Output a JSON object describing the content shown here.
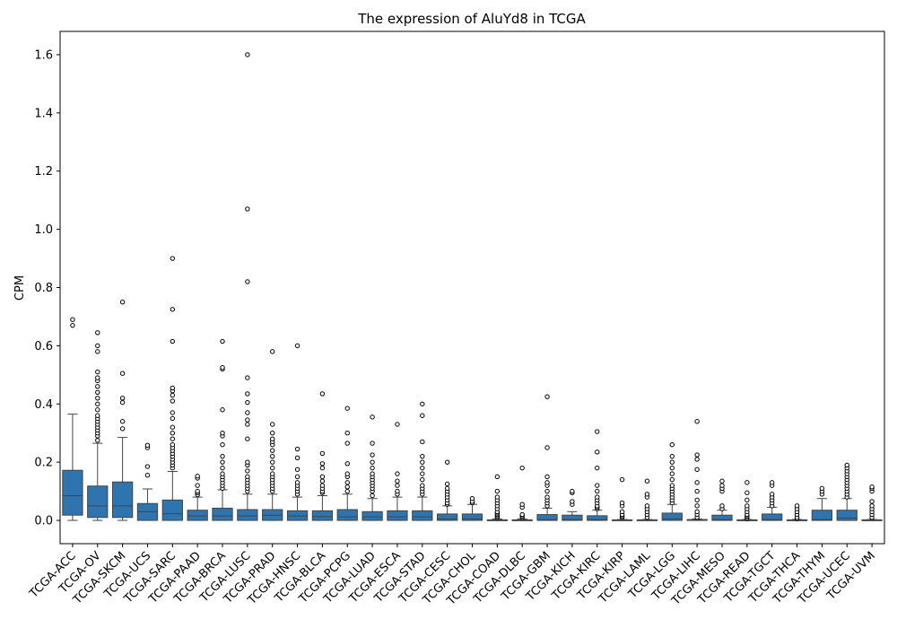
{
  "chart_data": {
    "type": "box",
    "title": "The expression of AluYd8 in TCGA",
    "xlabel": "",
    "ylabel": "CPM",
    "ylim": [
      -0.08,
      1.68
    ],
    "yticks": [
      0.0,
      0.2,
      0.4,
      0.6,
      0.8,
      1.0,
      1.2,
      1.4,
      1.6
    ],
    "ytick_labels": [
      "0.0",
      "0.2",
      "0.4",
      "0.6",
      "0.8",
      "1.0",
      "1.2",
      "1.4",
      "1.6"
    ],
    "grid": false,
    "box_color": "#2e75b0",
    "categories": [
      "TCGA-ACC",
      "TCGA-OV",
      "TCGA-SKCM",
      "TCGA-UCS",
      "TCGA-SARC",
      "TCGA-PAAD",
      "TCGA-BRCA",
      "TCGA-LUSC",
      "TCGA-PRAD",
      "TCGA-HNSC",
      "TCGA-BLCA",
      "TCGA-PCPG",
      "TCGA-LUAD",
      "TCGA-ESCA",
      "TCGA-STAD",
      "TCGA-CESC",
      "TCGA-CHOL",
      "TCGA-COAD",
      "TCGA-DLBC",
      "TCGA-GBM",
      "TCGA-KICH",
      "TCGA-KIRC",
      "TCGA-KIRP",
      "TCGA-LAML",
      "TCGA-LGG",
      "TCGA-LIHC",
      "TCGA-MESO",
      "TCGA-READ",
      "TCGA-TGCT",
      "TCGA-THCA",
      "TCGA-THYM",
      "TCGA-UCEC",
      "TCGA-UVM"
    ],
    "boxes": [
      {
        "q1": 0.018,
        "median": 0.085,
        "q3": 0.172,
        "whislo": 0.0,
        "whishi": 0.365,
        "fliers": [
          0.67,
          0.69
        ]
      },
      {
        "q1": 0.01,
        "median": 0.05,
        "q3": 0.118,
        "whislo": 0.0,
        "whishi": 0.265,
        "fliers": [
          0.275,
          0.29,
          0.3,
          0.31,
          0.32,
          0.33,
          0.34,
          0.35,
          0.36,
          0.38,
          0.4,
          0.42,
          0.44,
          0.46,
          0.48,
          0.49,
          0.51,
          0.58,
          0.6,
          0.645
        ]
      },
      {
        "q1": 0.01,
        "median": 0.05,
        "q3": 0.132,
        "whislo": 0.0,
        "whishi": 0.285,
        "fliers": [
          0.315,
          0.34,
          0.405,
          0.42,
          0.505,
          0.75
        ]
      },
      {
        "q1": 0.0,
        "median": 0.03,
        "q3": 0.058,
        "whislo": 0.0,
        "whishi": 0.108,
        "fliers": [
          0.155,
          0.185,
          0.25,
          0.258
        ]
      },
      {
        "q1": 0.0,
        "median": 0.023,
        "q3": 0.07,
        "whislo": 0.0,
        "whishi": 0.168,
        "fliers": [
          0.18,
          0.19,
          0.2,
          0.21,
          0.22,
          0.23,
          0.24,
          0.25,
          0.26,
          0.28,
          0.3,
          0.32,
          0.35,
          0.37,
          0.41,
          0.43,
          0.445,
          0.455,
          0.615,
          0.725,
          0.9
        ]
      },
      {
        "q1": 0.0,
        "median": 0.015,
        "q3": 0.035,
        "whislo": 0.0,
        "whishi": 0.08,
        "fliers": [
          0.088,
          0.095,
          0.1,
          0.12,
          0.145,
          0.152
        ]
      },
      {
        "q1": 0.0,
        "median": 0.015,
        "q3": 0.042,
        "whislo": 0.0,
        "whishi": 0.105,
        "fliers": [
          0.11,
          0.12,
          0.13,
          0.14,
          0.15,
          0.16,
          0.18,
          0.2,
          0.22,
          0.26,
          0.29,
          0.3,
          0.38,
          0.52,
          0.525,
          0.615
        ]
      },
      {
        "q1": 0.0,
        "median": 0.015,
        "q3": 0.037,
        "whislo": 0.0,
        "whishi": 0.09,
        "fliers": [
          0.1,
          0.11,
          0.12,
          0.13,
          0.14,
          0.15,
          0.17,
          0.19,
          0.2,
          0.28,
          0.33,
          0.345,
          0.37,
          0.405,
          0.435,
          0.49,
          0.82,
          1.07,
          1.6
        ]
      },
      {
        "q1": 0.0,
        "median": 0.018,
        "q3": 0.037,
        "whislo": 0.0,
        "whishi": 0.09,
        "fliers": [
          0.1,
          0.11,
          0.12,
          0.13,
          0.14,
          0.15,
          0.16,
          0.18,
          0.2,
          0.22,
          0.24,
          0.26,
          0.27,
          0.28,
          0.3,
          0.33,
          0.58
        ]
      },
      {
        "q1": 0.0,
        "median": 0.015,
        "q3": 0.033,
        "whislo": 0.0,
        "whishi": 0.08,
        "fliers": [
          0.09,
          0.1,
          0.11,
          0.12,
          0.13,
          0.15,
          0.175,
          0.215,
          0.245,
          0.6
        ]
      },
      {
        "q1": 0.0,
        "median": 0.013,
        "q3": 0.033,
        "whislo": 0.0,
        "whishi": 0.085,
        "fliers": [
          0.095,
          0.1,
          0.11,
          0.12,
          0.135,
          0.15,
          0.18,
          0.195,
          0.23,
          0.435
        ]
      },
      {
        "q1": 0.0,
        "median": 0.012,
        "q3": 0.037,
        "whislo": 0.0,
        "whishi": 0.09,
        "fliers": [
          0.1,
          0.115,
          0.13,
          0.15,
          0.16,
          0.195,
          0.265,
          0.3,
          0.385
        ]
      },
      {
        "q1": 0.0,
        "median": 0.012,
        "q3": 0.03,
        "whislo": 0.0,
        "whishi": 0.075,
        "fliers": [
          0.085,
          0.1,
          0.11,
          0.12,
          0.13,
          0.14,
          0.15,
          0.16,
          0.18,
          0.2,
          0.225,
          0.265,
          0.355
        ]
      },
      {
        "q1": 0.0,
        "median": 0.012,
        "q3": 0.033,
        "whislo": 0.0,
        "whishi": 0.08,
        "fliers": [
          0.09,
          0.1,
          0.12,
          0.135,
          0.16,
          0.33
        ]
      },
      {
        "q1": 0.0,
        "median": 0.012,
        "q3": 0.033,
        "whislo": 0.0,
        "whishi": 0.08,
        "fliers": [
          0.09,
          0.1,
          0.11,
          0.12,
          0.14,
          0.16,
          0.18,
          0.2,
          0.22,
          0.27,
          0.36,
          0.4
        ]
      },
      {
        "q1": 0.0,
        "median": 0.005,
        "q3": 0.022,
        "whislo": 0.0,
        "whishi": 0.05,
        "fliers": [
          0.055,
          0.06,
          0.07,
          0.08,
          0.09,
          0.1,
          0.11,
          0.125,
          0.2
        ]
      },
      {
        "q1": 0.0,
        "median": 0.005,
        "q3": 0.022,
        "whislo": 0.0,
        "whishi": 0.055,
        "fliers": [
          0.06,
          0.065,
          0.075
        ]
      },
      {
        "q1": 0.0,
        "median": 0.0,
        "q3": 0.002,
        "whislo": 0.0,
        "whishi": 0.005,
        "fliers": [
          0.01,
          0.015,
          0.02,
          0.025,
          0.03,
          0.04,
          0.05,
          0.06,
          0.07,
          0.08,
          0.1,
          0.15
        ]
      },
      {
        "q1": 0.0,
        "median": 0.0,
        "q3": 0.002,
        "whislo": 0.0,
        "whishi": 0.005,
        "fliers": [
          0.01,
          0.015,
          0.02,
          0.045,
          0.055,
          0.18
        ]
      },
      {
        "q1": 0.0,
        "median": 0.002,
        "q3": 0.02,
        "whislo": 0.0,
        "whishi": 0.042,
        "fliers": [
          0.05,
          0.06,
          0.07,
          0.08,
          0.1,
          0.12,
          0.13,
          0.15,
          0.25,
          0.425
        ]
      },
      {
        "q1": 0.0,
        "median": 0.003,
        "q3": 0.018,
        "whislo": 0.0,
        "whishi": 0.03,
        "fliers": [
          0.055,
          0.065,
          0.095,
          0.1
        ]
      },
      {
        "q1": 0.0,
        "median": 0.003,
        "q3": 0.016,
        "whislo": 0.0,
        "whishi": 0.035,
        "fliers": [
          0.04,
          0.045,
          0.05,
          0.06,
          0.07,
          0.08,
          0.1,
          0.12,
          0.18,
          0.235,
          0.305
        ]
      },
      {
        "q1": 0.0,
        "median": 0.0,
        "q3": 0.002,
        "whislo": 0.0,
        "whishi": 0.003,
        "fliers": [
          0.01,
          0.015,
          0.02,
          0.03,
          0.05,
          0.06,
          0.14
        ]
      },
      {
        "q1": 0.0,
        "median": 0.0,
        "q3": 0.002,
        "whislo": 0.0,
        "whishi": 0.003,
        "fliers": [
          0.01,
          0.02,
          0.03,
          0.04,
          0.05,
          0.08,
          0.09,
          0.135
        ]
      },
      {
        "q1": 0.0,
        "median": 0.005,
        "q3": 0.025,
        "whislo": 0.0,
        "whishi": 0.055,
        "fliers": [
          0.06,
          0.07,
          0.08,
          0.09,
          0.1,
          0.11,
          0.12,
          0.14,
          0.16,
          0.18,
          0.2,
          0.22,
          0.26
        ]
      },
      {
        "q1": 0.0,
        "median": 0.0,
        "q3": 0.003,
        "whislo": 0.0,
        "whishi": 0.005,
        "fliers": [
          0.01,
          0.02,
          0.03,
          0.05,
          0.07,
          0.1,
          0.13,
          0.175,
          0.21,
          0.225,
          0.34
        ]
      },
      {
        "q1": 0.0,
        "median": 0.003,
        "q3": 0.018,
        "whislo": 0.0,
        "whishi": 0.035,
        "fliers": [
          0.04,
          0.05,
          0.1,
          0.11,
          0.12,
          0.135
        ]
      },
      {
        "q1": 0.0,
        "median": 0.0,
        "q3": 0.002,
        "whislo": 0.0,
        "whishi": 0.003,
        "fliers": [
          0.005,
          0.01,
          0.015,
          0.02,
          0.03,
          0.04,
          0.05,
          0.07,
          0.095,
          0.13
        ]
      },
      {
        "q1": 0.0,
        "median": 0.003,
        "q3": 0.022,
        "whislo": 0.0,
        "whishi": 0.045,
        "fliers": [
          0.05,
          0.06,
          0.07,
          0.08,
          0.09,
          0.12,
          0.13
        ]
      },
      {
        "q1": 0.0,
        "median": 0.0,
        "q3": 0.002,
        "whislo": 0.0,
        "whishi": 0.003,
        "fliers": [
          0.005,
          0.01,
          0.02,
          0.03,
          0.04,
          0.05
        ]
      },
      {
        "q1": 0.0,
        "median": 0.003,
        "q3": 0.035,
        "whislo": 0.0,
        "whishi": 0.075,
        "fliers": [
          0.09,
          0.1,
          0.11
        ]
      },
      {
        "q1": 0.0,
        "median": 0.008,
        "q3": 0.035,
        "whislo": 0.0,
        "whishi": 0.075,
        "fliers": [
          0.08,
          0.09,
          0.1,
          0.11,
          0.12,
          0.13,
          0.14,
          0.15,
          0.16,
          0.17,
          0.18,
          0.19
        ]
      },
      {
        "q1": 0.0,
        "median": 0.0,
        "q3": 0.002,
        "whislo": 0.0,
        "whishi": 0.003,
        "fliers": [
          0.01,
          0.02,
          0.03,
          0.04,
          0.05,
          0.065,
          0.1,
          0.11,
          0.115
        ]
      }
    ]
  }
}
